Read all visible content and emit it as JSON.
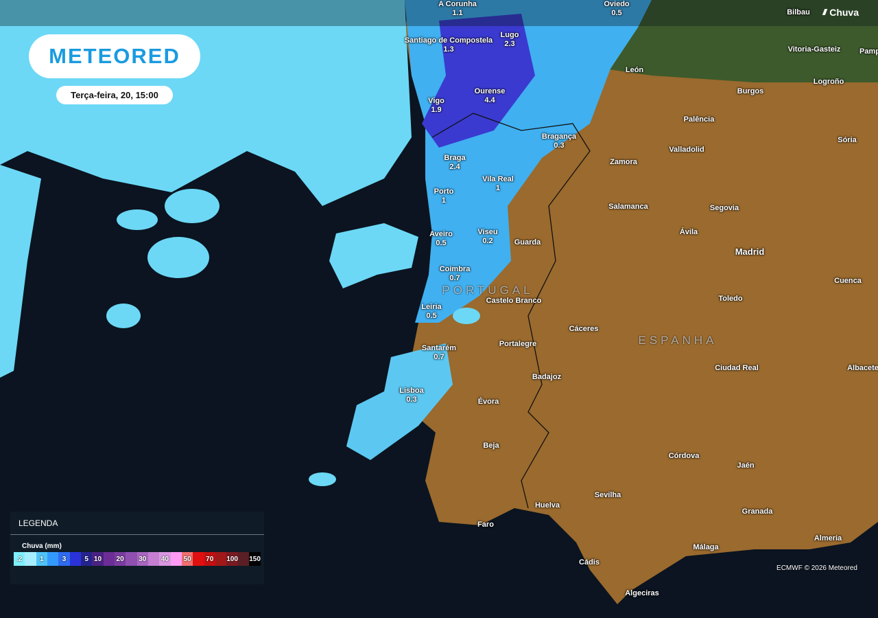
{
  "logo": "METEORED",
  "datetime": "Terça-feira, 20, 15:00",
  "layer": {
    "icon": "rain-icon",
    "label": "Chuva"
  },
  "cities": [
    {
      "name": "A Corunha",
      "value": "1.1"
    },
    {
      "name": "Oviedo",
      "value": "0.5"
    },
    {
      "name": "Bilbau",
      "value": ""
    },
    {
      "name": "Santiago de Compostela",
      "value": "1.3"
    },
    {
      "name": "Lugo",
      "value": "2.3"
    },
    {
      "name": "Vitoria-Gasteiz",
      "value": ""
    },
    {
      "name": "Pamp",
      "value": ""
    },
    {
      "name": "León",
      "value": ""
    },
    {
      "name": "Ourense",
      "value": "4.4"
    },
    {
      "name": "Burgos",
      "value": ""
    },
    {
      "name": "Logroño",
      "value": ""
    },
    {
      "name": "Vigo",
      "value": "1.9"
    },
    {
      "name": "Palência",
      "value": ""
    },
    {
      "name": "Valladolid",
      "value": ""
    },
    {
      "name": "Sória",
      "value": ""
    },
    {
      "name": "Bragança",
      "value": "0.3"
    },
    {
      "name": "Braga",
      "value": "2.4"
    },
    {
      "name": "Zamora",
      "value": ""
    },
    {
      "name": "Vila Real",
      "value": "1"
    },
    {
      "name": "Porto",
      "value": "1"
    },
    {
      "name": "Salamanca",
      "value": ""
    },
    {
      "name": "Segovia",
      "value": ""
    },
    {
      "name": "Aveiro",
      "value": "0.5"
    },
    {
      "name": "Viseu",
      "value": "0.2"
    },
    {
      "name": "Guarda",
      "value": ""
    },
    {
      "name": "Ávila",
      "value": ""
    },
    {
      "name": "Madrid",
      "value": ""
    },
    {
      "name": "Coimbra",
      "value": "0.7"
    },
    {
      "name": "Cuenca",
      "value": ""
    },
    {
      "name": "Toledo",
      "value": ""
    },
    {
      "name": "Castelo Branco",
      "value": ""
    },
    {
      "name": "Leiria",
      "value": "0.5"
    },
    {
      "name": "Cáceres",
      "value": ""
    },
    {
      "name": "Santarém",
      "value": "0.7"
    },
    {
      "name": "Portalegre",
      "value": ""
    },
    {
      "name": "Ciudad Real",
      "value": ""
    },
    {
      "name": "Albacete",
      "value": ""
    },
    {
      "name": "Badajoz",
      "value": ""
    },
    {
      "name": "Lisboa",
      "value": "0.3"
    },
    {
      "name": "Évora",
      "value": ""
    },
    {
      "name": "Beja",
      "value": ""
    },
    {
      "name": "Córdova",
      "value": ""
    },
    {
      "name": "Jaén",
      "value": ""
    },
    {
      "name": "Sevilha",
      "value": ""
    },
    {
      "name": "Huelva",
      "value": ""
    },
    {
      "name": "Granada",
      "value": ""
    },
    {
      "name": "Faro",
      "value": ""
    },
    {
      "name": "Almeria",
      "value": ""
    },
    {
      "name": "Málaga",
      "value": ""
    },
    {
      "name": "Cádis",
      "value": ""
    },
    {
      "name": "Algeciras",
      "value": ""
    }
  ],
  "countries": [
    "PORTUGAL",
    "ESPANHA"
  ],
  "legend": {
    "title": "LEGENDA",
    "unit": "Chuva (mm)",
    "scale": [
      {
        "label": ".2",
        "color": "#7ff0ff"
      },
      {
        "label": "",
        "color": "#a6eeff"
      },
      {
        "label": "1",
        "color": "#4fc3f7"
      },
      {
        "label": "",
        "color": "#3399ff"
      },
      {
        "label": "3",
        "color": "#2e6bf0"
      },
      {
        "label": "",
        "color": "#2a32d9"
      },
      {
        "label": "5",
        "color": "#24238e"
      },
      {
        "label": "10",
        "color": "#4a2283"
      },
      {
        "label": "",
        "color": "#6c2e96"
      },
      {
        "label": "20",
        "color": "#7a3ca0"
      },
      {
        "label": "",
        "color": "#9050b0"
      },
      {
        "label": "30",
        "color": "#a866c0"
      },
      {
        "label": "",
        "color": "#c47ed2"
      },
      {
        "label": "40",
        "color": "#d898e0"
      },
      {
        "label": "",
        "color": "#ff9af5"
      },
      {
        "label": "50",
        "color": "#f07070"
      },
      {
        "label": "",
        "color": "#e01010"
      },
      {
        "label": "70",
        "color": "#c41010"
      },
      {
        "label": "",
        "color": "#a01818"
      },
      {
        "label": "100",
        "color": "#7a1a22"
      },
      {
        "label": "",
        "color": "#5a1f24"
      },
      {
        "label": "150",
        "color": "#000000"
      }
    ]
  },
  "credit": "ECMWF © 2026 Meteored"
}
